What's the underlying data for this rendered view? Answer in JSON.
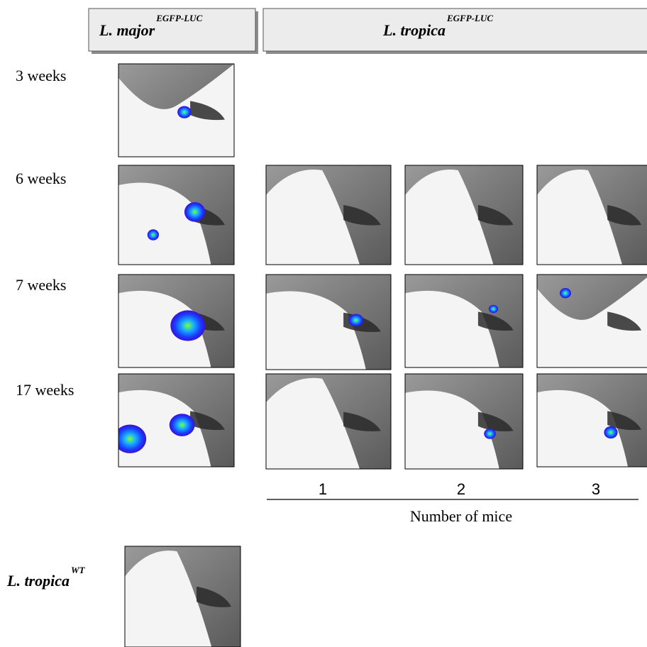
{
  "headers": [
    {
      "name": "L. major",
      "superscript": "EGFP-LUC"
    },
    {
      "name": "L. tropica",
      "superscript": "EGFP-LUC"
    }
  ],
  "rows": [
    {
      "label": "3 weeks"
    },
    {
      "label": "6 weeks"
    },
    {
      "label": "7 weeks"
    },
    {
      "label": "17 weeks"
    }
  ],
  "columns": {
    "labels": [
      "1",
      "2",
      "3"
    ],
    "axis_label": "Number of mice"
  },
  "control": {
    "name": "L. tropica",
    "superscript": "WT"
  }
}
